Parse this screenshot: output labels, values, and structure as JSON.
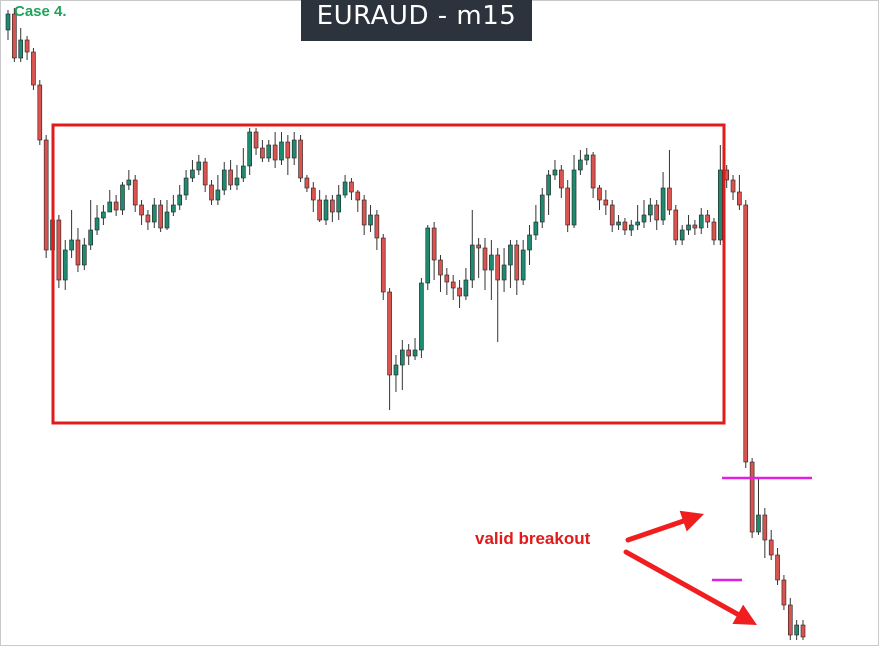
{
  "case_label": "Case 4.",
  "title": "EURAUD - m15",
  "annotation": "valid breakout",
  "colors": {
    "bull": "#1f8a70",
    "bear": "#d9534f",
    "wick": "#333333",
    "range_box": "#e01b1b",
    "arrow": "#f01e1e",
    "level_line": "#e020e0",
    "title_bg": "#2c333d"
  },
  "chart_data": {
    "type": "candlestick",
    "symbol": "EURAUD",
    "timeframe": "m15",
    "title": "EURAUD - m15",
    "xlabel": "",
    "ylabel": "",
    "grid": false,
    "legend": "none",
    "annotations": [
      {
        "type": "range_box",
        "label": ""
      },
      {
        "type": "text",
        "label": "valid breakout"
      },
      {
        "type": "arrow"
      },
      {
        "type": "arrow"
      },
      {
        "type": "horizontal_line"
      },
      {
        "type": "horizontal_line"
      }
    ],
    "candles": [
      [
        30,
        14,
        10,
        40
      ],
      [
        14,
        58,
        8,
        62
      ],
      [
        58,
        40,
        28,
        62
      ],
      [
        40,
        52,
        36,
        60
      ],
      [
        52,
        85,
        48,
        90
      ],
      [
        85,
        140,
        80,
        145
      ],
      [
        140,
        250,
        135,
        258
      ],
      [
        250,
        220,
        210,
        258
      ],
      [
        220,
        280,
        215,
        288
      ],
      [
        280,
        250,
        240,
        290
      ],
      [
        250,
        240,
        210,
        258
      ],
      [
        240,
        265,
        228,
        272
      ],
      [
        265,
        245,
        238,
        270
      ],
      [
        245,
        230,
        200,
        250
      ],
      [
        230,
        218,
        205,
        235
      ],
      [
        218,
        212,
        205,
        225
      ],
      [
        212,
        202,
        190,
        212
      ],
      [
        202,
        210,
        195,
        216
      ],
      [
        210,
        185,
        182,
        215
      ],
      [
        185,
        180,
        170,
        190
      ],
      [
        180,
        205,
        175,
        212
      ],
      [
        205,
        215,
        200,
        225
      ],
      [
        215,
        222,
        210,
        230
      ],
      [
        222,
        205,
        198,
        228
      ],
      [
        205,
        228,
        200,
        232
      ],
      [
        228,
        212,
        200,
        230
      ],
      [
        212,
        205,
        195,
        216
      ],
      [
        205,
        195,
        185,
        210
      ],
      [
        195,
        178,
        170,
        200
      ],
      [
        178,
        170,
        160,
        182
      ],
      [
        170,
        162,
        155,
        175
      ],
      [
        162,
        185,
        158,
        192
      ],
      [
        185,
        200,
        180,
        205
      ],
      [
        200,
        190,
        175,
        205
      ],
      [
        190,
        170,
        162,
        195
      ],
      [
        170,
        185,
        160,
        190
      ],
      [
        185,
        178,
        165,
        190
      ],
      [
        178,
        166,
        148,
        182
      ],
      [
        166,
        132,
        128,
        175
      ],
      [
        132,
        148,
        128,
        155
      ],
      [
        148,
        158,
        140,
        162
      ],
      [
        158,
        145,
        140,
        162
      ],
      [
        145,
        160,
        132,
        168
      ],
      [
        160,
        142,
        132,
        165
      ],
      [
        142,
        158,
        135,
        175
      ],
      [
        158,
        140,
        132,
        165
      ],
      [
        140,
        178,
        135,
        182
      ],
      [
        178,
        188,
        175,
        192
      ],
      [
        188,
        200,
        182,
        212
      ],
      [
        200,
        220,
        190,
        222
      ],
      [
        220,
        200,
        195,
        225
      ],
      [
        200,
        212,
        195,
        222
      ],
      [
        212,
        195,
        185,
        220
      ],
      [
        195,
        182,
        175,
        198
      ],
      [
        182,
        192,
        178,
        200
      ],
      [
        192,
        200,
        190,
        212
      ],
      [
        200,
        225,
        195,
        235
      ],
      [
        225,
        215,
        205,
        232
      ],
      [
        215,
        238,
        210,
        250
      ],
      [
        238,
        292,
        234,
        300
      ],
      [
        292,
        375,
        288,
        410
      ],
      [
        375,
        365,
        355,
        392
      ],
      [
        365,
        350,
        340,
        390
      ],
      [
        350,
        356,
        344,
        365
      ],
      [
        356,
        350,
        338,
        360
      ],
      [
        350,
        283,
        278,
        358
      ],
      [
        283,
        228,
        225,
        290
      ],
      [
        228,
        260,
        222,
        280
      ],
      [
        260,
        275,
        255,
        292
      ],
      [
        275,
        282,
        268,
        295
      ],
      [
        282,
        288,
        275,
        300
      ],
      [
        288,
        296,
        280,
        308
      ],
      [
        296,
        280,
        268,
        300
      ],
      [
        280,
        245,
        210,
        288
      ],
      [
        245,
        248,
        238,
        278
      ],
      [
        248,
        270,
        238,
        290
      ],
      [
        270,
        255,
        240,
        300
      ],
      [
        255,
        280,
        248,
        342
      ],
      [
        280,
        265,
        248,
        292
      ],
      [
        265,
        245,
        240,
        288
      ],
      [
        245,
        280,
        240,
        295
      ],
      [
        280,
        250,
        240,
        285
      ],
      [
        250,
        235,
        225,
        265
      ],
      [
        235,
        222,
        205,
        240
      ],
      [
        222,
        195,
        188,
        228
      ],
      [
        195,
        175,
        170,
        215
      ],
      [
        175,
        170,
        160,
        180
      ],
      [
        170,
        188,
        165,
        198
      ],
      [
        188,
        225,
        180,
        232
      ],
      [
        225,
        170,
        155,
        228
      ],
      [
        170,
        160,
        150,
        175
      ],
      [
        160,
        155,
        148,
        165
      ],
      [
        155,
        188,
        152,
        198
      ],
      [
        188,
        200,
        185,
        210
      ],
      [
        200,
        205,
        190,
        215
      ],
      [
        205,
        225,
        200,
        232
      ],
      [
        225,
        222,
        215,
        230
      ],
      [
        222,
        230,
        218,
        235
      ],
      [
        230,
        225,
        220,
        236
      ],
      [
        225,
        222,
        205,
        230
      ],
      [
        222,
        215,
        200,
        228
      ],
      [
        215,
        205,
        198,
        222
      ],
      [
        205,
        220,
        200,
        230
      ],
      [
        220,
        188,
        172,
        225
      ],
      [
        188,
        210,
        150,
        215
      ],
      [
        210,
        240,
        205,
        245
      ],
      [
        240,
        230,
        225,
        245
      ],
      [
        230,
        225,
        215,
        235
      ],
      [
        225,
        228,
        220,
        235
      ],
      [
        228,
        215,
        208,
        234
      ],
      [
        215,
        222,
        210,
        228
      ],
      [
        222,
        240,
        218,
        245
      ],
      [
        240,
        170,
        145,
        245
      ],
      [
        170,
        180,
        165,
        188
      ],
      [
        180,
        192,
        175,
        200
      ],
      [
        192,
        205,
        175,
        210
      ],
      [
        205,
        462,
        200,
        468
      ],
      [
        462,
        532,
        458,
        538
      ],
      [
        532,
        515,
        478,
        535
      ],
      [
        515,
        540,
        508,
        558
      ],
      [
        540,
        555,
        530,
        560
      ],
      [
        555,
        580,
        548,
        585
      ],
      [
        580,
        605,
        575,
        610
      ],
      [
        605,
        635,
        598,
        640
      ],
      [
        635,
        625,
        620,
        640
      ],
      [
        625,
        637,
        620,
        640
      ]
    ]
  }
}
